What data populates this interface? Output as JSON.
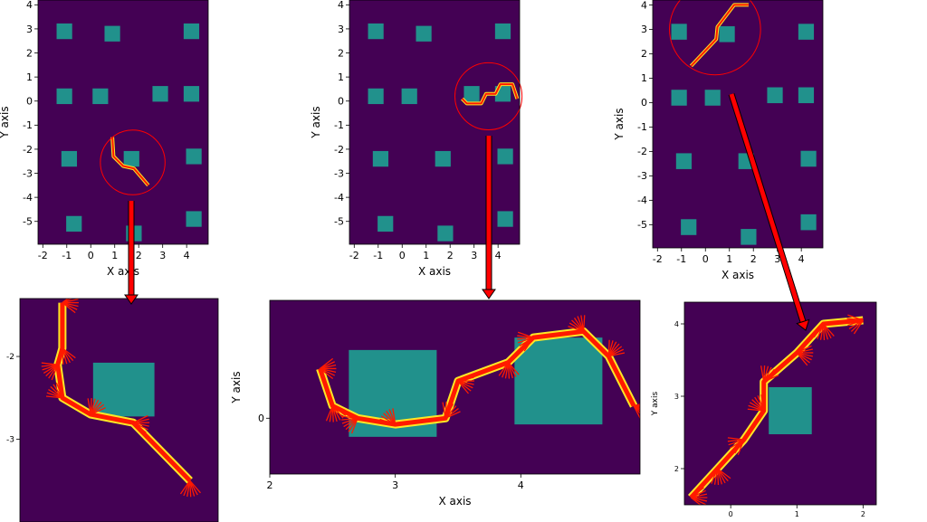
{
  "colors": {
    "background": "#440154",
    "obstacle": "#21918c",
    "path": "#ff1a00",
    "path_outline": "#fde725",
    "arrow": "#ff0000",
    "circle": "#ff0000"
  },
  "chart_data": [
    {
      "type": "scatter",
      "name": "overview-1",
      "title": "",
      "xlabel": "X axis",
      "ylabel": "Y axis",
      "xlim": [
        -2.2,
        4.9
      ],
      "ylim": [
        -5.95,
        4.2
      ],
      "xticks": [
        "-2",
        "-1",
        "0",
        "1",
        "2",
        "3",
        "4"
      ],
      "yticks": [
        "-5",
        "-4",
        "-3",
        "-2",
        "-1",
        "0",
        "1",
        "2",
        "3",
        "4"
      ],
      "obstacles": [
        [
          -1.1,
          2.9
        ],
        [
          0.9,
          2.8
        ],
        [
          4.2,
          2.9
        ],
        [
          -1.1,
          0.2
        ],
        [
          0.4,
          0.2
        ],
        [
          2.9,
          0.3
        ],
        [
          4.2,
          0.3
        ],
        [
          -0.9,
          -2.4
        ],
        [
          1.7,
          -2.4
        ],
        [
          4.3,
          -2.3
        ],
        [
          -0.7,
          -5.1
        ],
        [
          1.8,
          -5.5
        ],
        [
          4.3,
          -4.9
        ]
      ],
      "obstacle_size": 0.65,
      "path": [
        [
          0.9,
          -1.5
        ],
        [
          0.95,
          -2.3
        ],
        [
          1.35,
          -2.7
        ],
        [
          1.8,
          -2.8
        ],
        [
          2.4,
          -3.5
        ]
      ],
      "highlight_circle": {
        "center": [
          1.75,
          -2.55
        ],
        "radius": 1.35
      }
    },
    {
      "type": "scatter",
      "name": "overview-2",
      "title": "",
      "xlabel": "X axis",
      "ylabel": "Y axis",
      "xlim": [
        -2.2,
        4.9
      ],
      "ylim": [
        -5.95,
        4.2
      ],
      "xticks": [
        "-2",
        "-1",
        "0",
        "1",
        "2",
        "3",
        "4"
      ],
      "yticks": [
        "-5",
        "-4",
        "-3",
        "-2",
        "-1",
        "0",
        "1",
        "2",
        "3",
        "4"
      ],
      "obstacles": [
        [
          -1.1,
          2.9
        ],
        [
          0.9,
          2.8
        ],
        [
          4.2,
          2.9
        ],
        [
          -1.1,
          0.2
        ],
        [
          0.3,
          0.2
        ],
        [
          2.9,
          0.3
        ],
        [
          4.2,
          0.3
        ],
        [
          -0.9,
          -2.4
        ],
        [
          1.7,
          -2.4
        ],
        [
          4.3,
          -2.3
        ],
        [
          -0.7,
          -5.1
        ],
        [
          1.8,
          -5.5
        ],
        [
          4.3,
          -4.9
        ]
      ],
      "obstacle_size": 0.65,
      "path": [
        [
          2.5,
          0.1
        ],
        [
          2.7,
          -0.1
        ],
        [
          3.3,
          -0.1
        ],
        [
          3.5,
          0.3
        ],
        [
          3.9,
          0.3
        ],
        [
          4.1,
          0.7
        ],
        [
          4.6,
          0.7
        ],
        [
          4.8,
          0.1
        ]
      ],
      "highlight_circle": {
        "center": [
          3.6,
          0.2
        ],
        "radius": 1.4
      }
    },
    {
      "type": "scatter",
      "name": "overview-3",
      "title": "",
      "xlabel": "X axis",
      "ylabel": "Y axis",
      "xlim": [
        -2.2,
        4.9
      ],
      "ylim": [
        -5.95,
        4.2
      ],
      "xticks": [
        "-2",
        "-1",
        "0",
        "1",
        "2",
        "3",
        "4"
      ],
      "yticks": [
        "-5",
        "-4",
        "-3",
        "-2",
        "-1",
        "0",
        "1",
        "2",
        "3",
        "4"
      ],
      "obstacles": [
        [
          -1.1,
          2.9
        ],
        [
          0.9,
          2.8
        ],
        [
          4.2,
          2.9
        ],
        [
          -1.1,
          0.2
        ],
        [
          0.3,
          0.2
        ],
        [
          2.9,
          0.3
        ],
        [
          4.2,
          0.3
        ],
        [
          -0.9,
          -2.4
        ],
        [
          1.7,
          -2.4
        ],
        [
          4.3,
          -2.3
        ],
        [
          -0.7,
          -5.1
        ],
        [
          1.8,
          -5.5
        ],
        [
          4.3,
          -4.9
        ]
      ],
      "obstacle_size": 0.65,
      "path": [
        [
          -0.6,
          1.5
        ],
        [
          0.45,
          2.6
        ],
        [
          0.5,
          3.1
        ],
        [
          1.2,
          4.0
        ],
        [
          1.8,
          4.0
        ]
      ],
      "highlight_circle": {
        "center": [
          0.4,
          3.0
        ],
        "radius": 1.9
      }
    },
    {
      "type": "scatter",
      "name": "detail-1",
      "title": "",
      "xlabel": "",
      "ylabel": "",
      "xlim": [
        0.6,
        2.7
      ],
      "ylim": [
        -4.0,
        -1.3
      ],
      "xticks": [],
      "yticks": [
        "-2",
        "-3"
      ],
      "obstacles": [
        [
          1.7,
          -2.4
        ]
      ],
      "obstacle_size": 0.65,
      "path": [
        [
          1.05,
          -1.35
        ],
        [
          1.05,
          -1.9
        ],
        [
          1.0,
          -2.1
        ],
        [
          1.05,
          -2.5
        ],
        [
          1.35,
          -2.7
        ],
        [
          1.8,
          -2.8
        ],
        [
          2.4,
          -3.5
        ]
      ]
    },
    {
      "type": "scatter",
      "name": "detail-2",
      "title": "",
      "xlabel": "X axis",
      "ylabel": "Y axis",
      "xlim": [
        2.0,
        4.95
      ],
      "ylim": [
        -0.45,
        0.95
      ],
      "xticks": [
        "2",
        "3",
        "4"
      ],
      "yticks": [
        "0"
      ],
      "obstacles": [
        [
          2.98,
          0.2
        ],
        [
          4.3,
          0.3
        ]
      ],
      "obstacle_size": 0.7,
      "path": [
        [
          2.4,
          0.4
        ],
        [
          2.5,
          0.1
        ],
        [
          2.7,
          0.0
        ],
        [
          3.0,
          -0.05
        ],
        [
          3.4,
          0.0
        ],
        [
          3.5,
          0.3
        ],
        [
          3.9,
          0.45
        ],
        [
          4.1,
          0.65
        ],
        [
          4.5,
          0.7
        ],
        [
          4.7,
          0.5
        ],
        [
          4.9,
          0.1
        ]
      ]
    },
    {
      "type": "scatter",
      "name": "detail-3",
      "title": "",
      "xlabel": "",
      "ylabel": "Y axis",
      "xlim": [
        -0.7,
        2.2
      ],
      "ylim": [
        1.5,
        4.3
      ],
      "xticks": [
        "0",
        "1",
        "2"
      ],
      "yticks": [
        "2",
        "3",
        "4"
      ],
      "obstacles": [
        [
          0.9,
          2.8
        ]
      ],
      "obstacle_size": 0.65,
      "path": [
        [
          -0.6,
          1.6
        ],
        [
          -0.2,
          2.0
        ],
        [
          0.2,
          2.4
        ],
        [
          0.5,
          2.8
        ],
        [
          0.5,
          3.2
        ],
        [
          1.0,
          3.6
        ],
        [
          1.4,
          4.0
        ],
        [
          2.0,
          4.05
        ]
      ]
    }
  ],
  "arrows": [
    {
      "from": "overview-1",
      "to": "detail-1"
    },
    {
      "from": "overview-2",
      "to": "detail-2"
    },
    {
      "from": "overview-3",
      "to": "detail-3"
    }
  ]
}
